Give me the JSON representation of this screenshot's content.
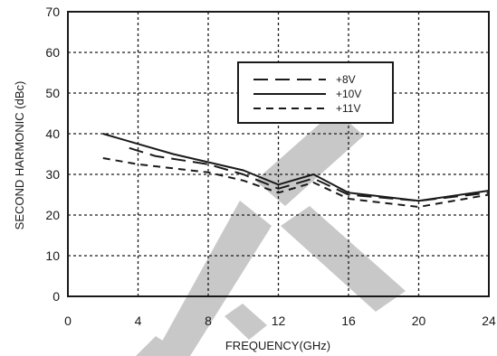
{
  "chart_data": {
    "type": "line",
    "xlabel": "FREQUENCY(GHz)",
    "ylabel": "SECOND HARMONIC (dBc)",
    "xlim": [
      0,
      24
    ],
    "ylim": [
      0,
      70
    ],
    "x_ticks": [
      0,
      4,
      8,
      12,
      16,
      20,
      24
    ],
    "y_ticks": [
      0,
      10,
      20,
      30,
      40,
      50,
      60,
      70
    ],
    "grid": true,
    "legend_position": "top-right",
    "series": [
      {
        "name": "+8V",
        "dash": "long-dash",
        "points": [
          [
            3.5,
            36.5
          ],
          [
            5,
            34.5
          ],
          [
            8,
            32.5
          ],
          [
            10,
            30
          ],
          [
            12,
            26.5
          ],
          [
            14,
            29
          ],
          [
            16,
            25
          ],
          [
            20,
            23.5
          ],
          [
            24,
            25.5
          ]
        ]
      },
      {
        "name": "+10V",
        "dash": "solid",
        "points": [
          [
            2,
            40
          ],
          [
            4,
            37.5
          ],
          [
            6,
            35
          ],
          [
            8,
            33
          ],
          [
            10,
            31
          ],
          [
            12,
            27.5
          ],
          [
            14,
            30
          ],
          [
            16,
            25.5
          ],
          [
            20,
            23.5
          ],
          [
            24,
            26
          ]
        ]
      },
      {
        "name": "+11V",
        "dash": "short-dash",
        "points": [
          [
            2,
            34
          ],
          [
            4,
            32.5
          ],
          [
            8,
            30.5
          ],
          [
            10,
            28.5
          ],
          [
            12,
            25.5
          ],
          [
            14,
            28
          ],
          [
            16,
            24
          ],
          [
            20,
            22
          ],
          [
            24,
            25
          ]
        ]
      }
    ]
  },
  "colors": {
    "line": "#1a1a1a",
    "grid": "#1a1a1a",
    "watermark": "#c8c8c8"
  }
}
